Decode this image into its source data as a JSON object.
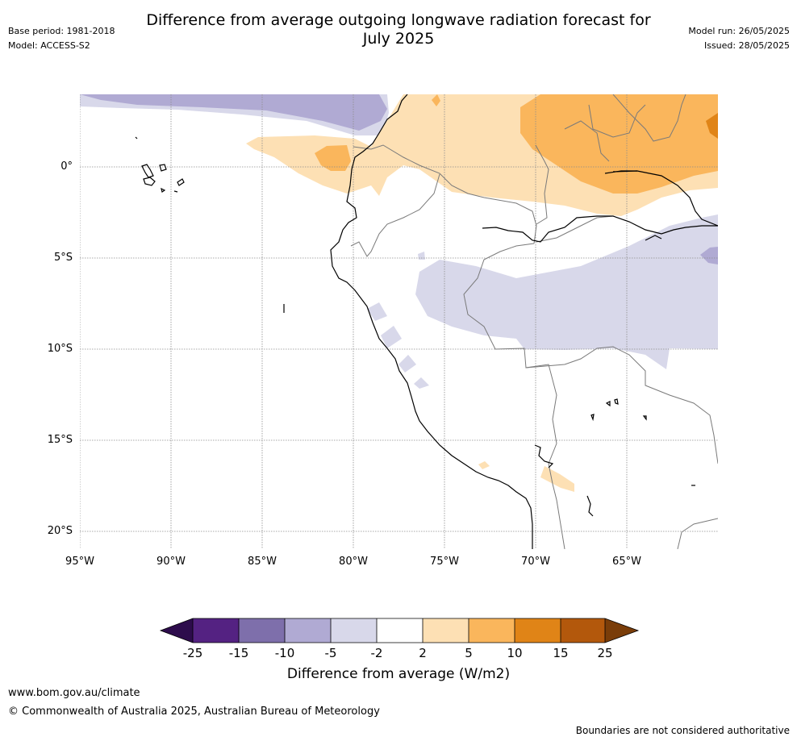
{
  "header": {
    "title_line1": "Difference from average outgoing longwave radiation forecast for",
    "title_line2": "July 2025",
    "base_period": "Base period: 1981-2018",
    "model": "Model: ACCESS-S2",
    "model_run": "Model run: 26/05/2025",
    "issued": "Issued: 28/05/2025"
  },
  "map": {
    "lat_labels": [
      "0°",
      "5°S",
      "10°S",
      "15°S",
      "20°S"
    ],
    "lon_labels": [
      "95°W",
      "90°W",
      "85°W",
      "80°W",
      "75°W",
      "70°W",
      "65°W"
    ],
    "colors": {
      "c_neg25": "#2d0c4c",
      "c_neg20": "#542282",
      "c_neg15": "#7e6fab",
      "c_neg10": "#b0aad3",
      "c_neg5": "#d8d8ea",
      "c_neutral": "#ffffff",
      "c_pos2": "#fde0b4",
      "c_pos5": "#fab65c",
      "c_pos10": "#e08417",
      "c_pos15": "#b3580c",
      "c_pos25": "#7a3d09",
      "coast": "#000000",
      "border": "#7a7a7a",
      "grid": "#8c8c8c"
    }
  },
  "colorbar": {
    "ticks": [
      "-25",
      "-15",
      "-10",
      "-5",
      "-2",
      "2",
      "5",
      "10",
      "15",
      "25"
    ],
    "label": "Difference from average (W/m2)"
  },
  "footer": {
    "url": "www.bom.gov.au/climate",
    "copyright": "© Commonwealth of Australia 2025, Australian Bureau of Meteorology",
    "disclaimer": "Boundaries are not considered authoritative"
  }
}
